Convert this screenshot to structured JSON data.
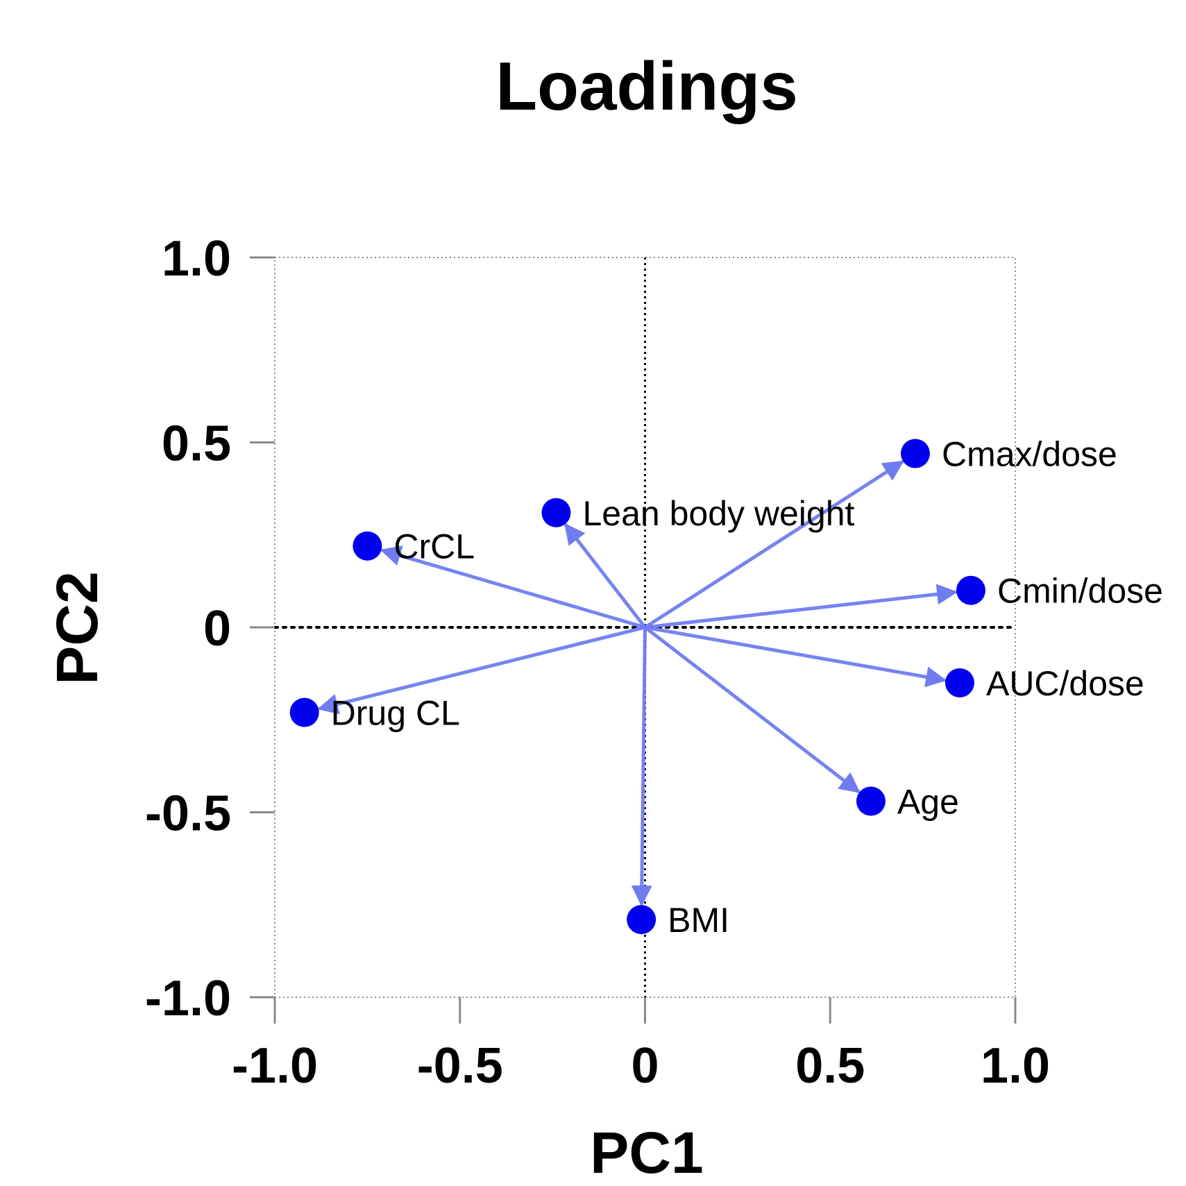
{
  "chart_data": {
    "type": "scatter",
    "title": "Loadings",
    "xlabel": "PC1",
    "ylabel": "PC2",
    "xlim": [
      -1.0,
      1.0
    ],
    "ylim": [
      -1.0,
      1.0
    ],
    "xticks": [
      -1.0,
      -0.5,
      0,
      0.5,
      1.0
    ],
    "xtick_labels": [
      "-1.0",
      "-0.5",
      "0",
      "0.5",
      "1.0"
    ],
    "yticks": [
      1.0,
      0.5,
      0,
      -0.5,
      -1.0
    ],
    "ytick_labels": [
      "1.0",
      "0.5",
      "0",
      "-0.5",
      "-1.0"
    ],
    "grid": true,
    "arrows_from_origin": true,
    "point_color": "#0000ee",
    "arrow_color": "#6f7cf0",
    "points": [
      {
        "label": "Cmax/dose",
        "x": 0.73,
        "y": 0.47
      },
      {
        "label": "Lean body weight",
        "x": -0.24,
        "y": 0.31
      },
      {
        "label": "CrCL",
        "x": -0.75,
        "y": 0.22
      },
      {
        "label": "Cmin/dose",
        "x": 0.88,
        "y": 0.1
      },
      {
        "label": "AUC/dose",
        "x": 0.85,
        "y": -0.15
      },
      {
        "label": "Drug CL",
        "x": -0.92,
        "y": -0.23
      },
      {
        "label": "Age",
        "x": 0.61,
        "y": -0.47
      },
      {
        "label": "BMI",
        "x": -0.01,
        "y": -0.79
      }
    ]
  }
}
